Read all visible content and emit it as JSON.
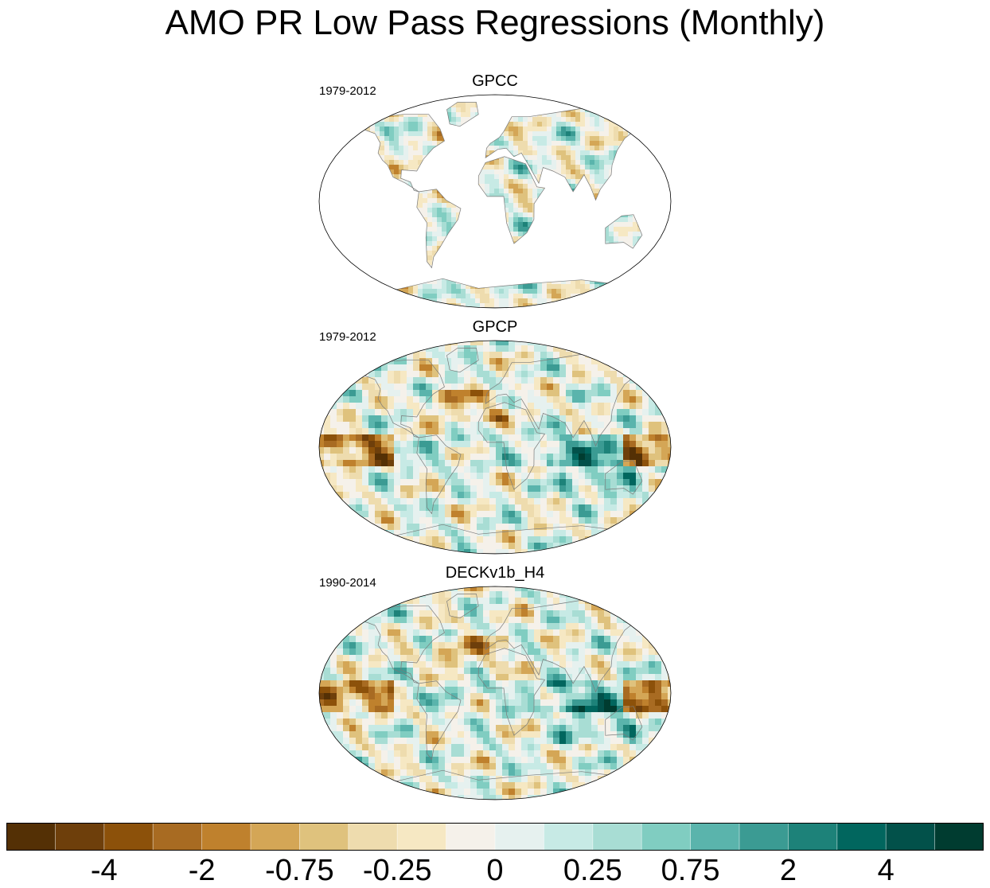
{
  "title": "AMO PR Low Pass Regressions (Monthly)",
  "chart_data": {
    "type": "heatmap",
    "title": "AMO PR Low Pass Regressions (Monthly)",
    "projection": "robinson-like world map",
    "panels": [
      {
        "name": "GPCC",
        "period": "1979-2012",
        "coverage": "land only"
      },
      {
        "name": "GPCP",
        "period": "1979-2012",
        "coverage": "global"
      },
      {
        "name": "DECKv1b_H4",
        "period": "1990-2014",
        "coverage": "global"
      }
    ],
    "colorbar": {
      "colors": [
        "#543005",
        "#6e3f0b",
        "#8c510a",
        "#a86b22",
        "#bf812d",
        "#d4a656",
        "#dfc27d",
        "#eedcae",
        "#f6e8c3",
        "#f5f1ea",
        "#e6f1ef",
        "#c7eae5",
        "#a8ddd4",
        "#80cdc1",
        "#5ab4ac",
        "#3b9b93",
        "#1d8279",
        "#01665e",
        "#02514a",
        "#003c30"
      ],
      "tick_labels": [
        "-4",
        "-2",
        "-0.75",
        "-0.25",
        "0",
        "0.25",
        "0.75",
        "2",
        "4"
      ],
      "tick_boundaries": [
        2,
        4,
        6,
        8,
        10,
        12,
        14,
        16,
        18
      ]
    }
  }
}
